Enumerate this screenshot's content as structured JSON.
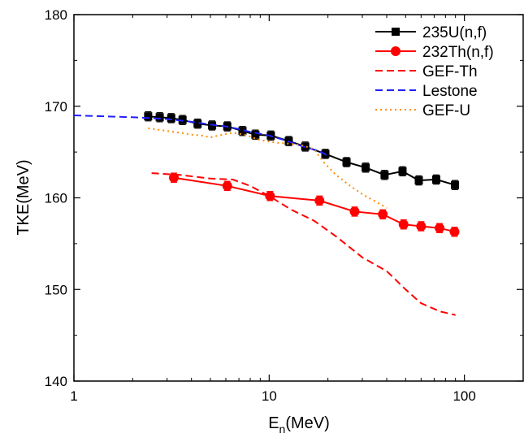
{
  "chart_data": {
    "type": "line",
    "xscale": "log",
    "xlim": [
      1,
      200
    ],
    "ylim": [
      140,
      180
    ],
    "x_ticks": [
      {
        "value": 1,
        "label": "1"
      },
      {
        "value": 10,
        "label": "10"
      },
      {
        "value": 100,
        "label": "100"
      }
    ],
    "y_ticks": [
      {
        "value": 140,
        "label": "140"
      },
      {
        "value": 150,
        "label": "150"
      },
      {
        "value": 160,
        "label": "160"
      },
      {
        "value": 170,
        "label": "170"
      },
      {
        "value": 180,
        "label": "180"
      }
    ],
    "xlabel": {
      "main": "E",
      "sub": "n",
      "rest": "(MeV)"
    },
    "ylabel": "TKE(MeV)",
    "legend_position": "top-right",
    "series": [
      {
        "name": "235U(n,f)",
        "style": "line-markers",
        "marker": "square",
        "color": "#000000",
        "x": [
          2.4,
          2.75,
          3.15,
          3.6,
          4.3,
          5.1,
          6.1,
          7.3,
          8.5,
          10.2,
          12.6,
          15.3,
          19.4,
          24.9,
          31.2,
          39.0,
          48.2,
          58.4,
          71.7,
          89.5
        ],
        "y": [
          168.9,
          168.8,
          168.7,
          168.5,
          168.1,
          167.9,
          167.8,
          167.3,
          166.9,
          166.8,
          166.2,
          165.6,
          164.8,
          163.9,
          163.3,
          162.5,
          162.9,
          161.9,
          162.0,
          161.4
        ],
        "err": [
          0.5,
          0.5,
          0.5,
          0.5,
          0.5,
          0.5,
          0.5,
          0.5,
          0.5,
          0.5,
          0.5,
          0.5,
          0.5,
          0.5,
          0.5,
          0.5,
          0.5,
          0.5,
          0.5,
          0.5
        ]
      },
      {
        "name": "232Th(n,f)",
        "style": "line-markers",
        "marker": "circle",
        "color": "#ff0000",
        "x": [
          3.25,
          6.1,
          10.1,
          18.1,
          27.4,
          38.2,
          48.8,
          60.0,
          74.6,
          89.0
        ],
        "y": [
          162.2,
          161.3,
          160.2,
          159.7,
          158.5,
          158.2,
          157.1,
          156.9,
          156.7,
          156.3
        ],
        "err": [
          0.5,
          0.5,
          0.5,
          0.5,
          0.5,
          0.5,
          0.5,
          0.5,
          0.5,
          0.5
        ]
      },
      {
        "name": "GEF-Th",
        "style": "dashed",
        "color": "#ff0000",
        "x": [
          2.5,
          3.5,
          5.0,
          6.5,
          8.0,
          10.0,
          13.0,
          17.0,
          22.0,
          30.0,
          40.0,
          50.0,
          60.0,
          75.0,
          90.0
        ],
        "y": [
          162.7,
          162.5,
          162.1,
          162.0,
          161.3,
          160.2,
          158.7,
          157.5,
          155.8,
          153.5,
          152.0,
          150.0,
          148.5,
          147.6,
          147.2
        ]
      },
      {
        "name": "Lestone",
        "style": "dashed",
        "color": "#1f1fff",
        "x": [
          1.0,
          2.0,
          3.0,
          4.0,
          5.0,
          6.0,
          7.0,
          8.0,
          9.0,
          10.0,
          12.0,
          15.0,
          18.0,
          20.0
        ],
        "y": [
          169.0,
          168.8,
          168.6,
          168.3,
          168.0,
          167.8,
          167.5,
          167.2,
          167.0,
          166.8,
          166.3,
          165.6,
          165.1,
          164.6
        ]
      },
      {
        "name": "GEF-U",
        "style": "dotted",
        "color": "#ff8c00",
        "x": [
          2.4,
          3.0,
          3.5,
          4.0,
          4.5,
          5.0,
          5.5,
          6.5,
          7.5,
          9.0,
          11.0,
          13.0,
          15.0,
          17.0,
          19.0,
          22.0,
          26.0,
          30.0,
          35.0,
          40.0
        ],
        "y": [
          167.6,
          167.3,
          167.1,
          166.9,
          166.8,
          166.6,
          166.8,
          167.1,
          166.9,
          166.3,
          166.0,
          165.9,
          165.7,
          165.3,
          163.9,
          162.5,
          161.3,
          160.4,
          159.6,
          158.9
        ]
      }
    ]
  }
}
